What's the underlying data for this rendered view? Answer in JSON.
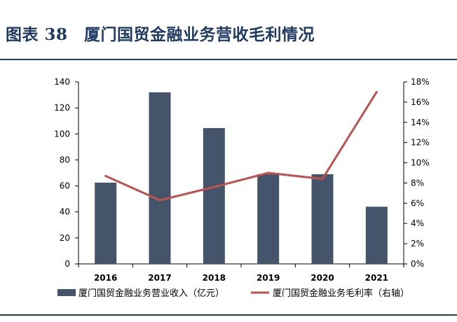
{
  "header": {
    "title": "图表 38　厦门国贸金融业务营收毛利情况"
  },
  "colors": {
    "bar": "#44546a",
    "line": "#c0504d",
    "title": "#1f3b63"
  },
  "chart_data": {
    "type": "bar",
    "categories": [
      "2016",
      "2017",
      "2018",
      "2019",
      "2020",
      "2021"
    ],
    "series": [
      {
        "name": "厦门国贸金融业务营业收入（亿元）",
        "type": "bar",
        "axis": "left",
        "values": [
          62.5,
          132,
          104.5,
          69,
          69,
          44
        ]
      },
      {
        "name": "厦门国贸金融业务毛利率（右轴）",
        "type": "line",
        "axis": "right",
        "values": [
          8.7,
          6.3,
          7.6,
          9.0,
          8.4,
          17.0
        ]
      }
    ],
    "y_left": {
      "lim": [
        0,
        140
      ],
      "ticks": [
        "0",
        "20",
        "40",
        "60",
        "80",
        "100",
        "120",
        "140"
      ]
    },
    "y_right": {
      "lim": [
        0,
        18
      ],
      "ticks": [
        "0%",
        "2%",
        "4%",
        "6%",
        "8%",
        "10%",
        "12%",
        "14%",
        "16%",
        "18%"
      ]
    },
    "grid": false,
    "legend_position": "bottom"
  }
}
